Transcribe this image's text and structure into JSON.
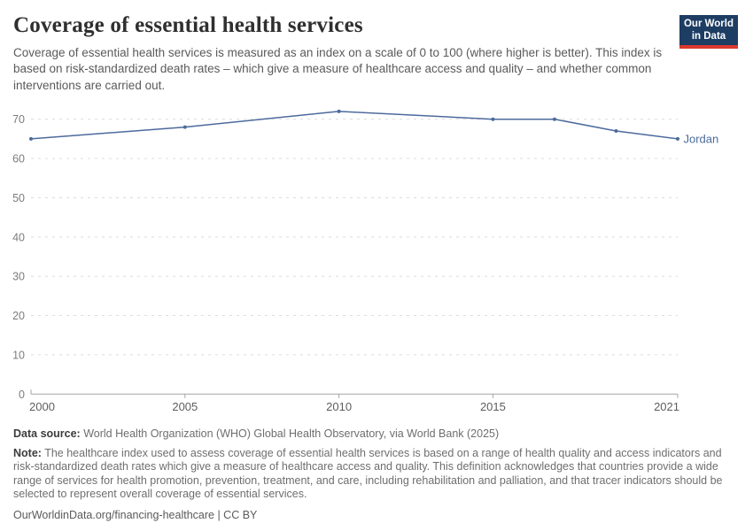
{
  "header": {
    "title": "Coverage of essential health services",
    "subtitle": "Coverage of essential health services is measured as an index on a scale of 0 to 100 (where higher is better). This index is based on risk-standardized death rates – which give a measure of healthcare access and quality – and whether common interventions are carried out.",
    "logo": {
      "line1": "Our World",
      "line2": "in Data",
      "bg_color": "#1d3d63",
      "accent_color": "#dc382d"
    }
  },
  "chart_data": {
    "type": "line",
    "title": "Coverage of essential health services",
    "x": [
      2000,
      2005,
      2010,
      2015,
      2017,
      2019,
      2021
    ],
    "series": [
      {
        "name": "Jordan",
        "values": [
          65,
          68,
          72,
          70,
          70,
          67,
          65
        ],
        "color": "#4c6a9c"
      }
    ],
    "xlabel": "",
    "ylabel": "",
    "xlim": [
      2000,
      2021
    ],
    "ylim": [
      0,
      73
    ],
    "yticks": [
      0,
      10,
      20,
      30,
      40,
      50,
      60,
      70
    ],
    "xticks": [
      2000,
      2005,
      2010,
      2015,
      2021
    ],
    "grid": "horizontal-dashed",
    "legend_position": "line-end-label"
  },
  "footer": {
    "data_source_label": "Data source:",
    "data_source": "World Health Organization (WHO) Global Health Observatory, via World Bank (2025)",
    "note_label": "Note:",
    "note": "The healthcare index used to assess coverage of essential health services is based on a range of health quality and access indicators and risk-standardized death rates which give a measure of healthcare access and quality. This definition acknowledges that countries provide a wide range of services for health promotion, prevention, treatment, and care, including rehabilitation and palliation, and that tracer indicators should be selected to represent overall coverage of essential services.",
    "license_line": "OurWorldinData.org/financing-healthcare | CC BY"
  },
  "colors": {
    "series_blue": "#4c6a9c",
    "gridline": "#dcdcdc",
    "axis": "#a3a3a3",
    "y_tick_label": "#7c7c7c",
    "x_tick_label": "#5e5e5e"
  }
}
